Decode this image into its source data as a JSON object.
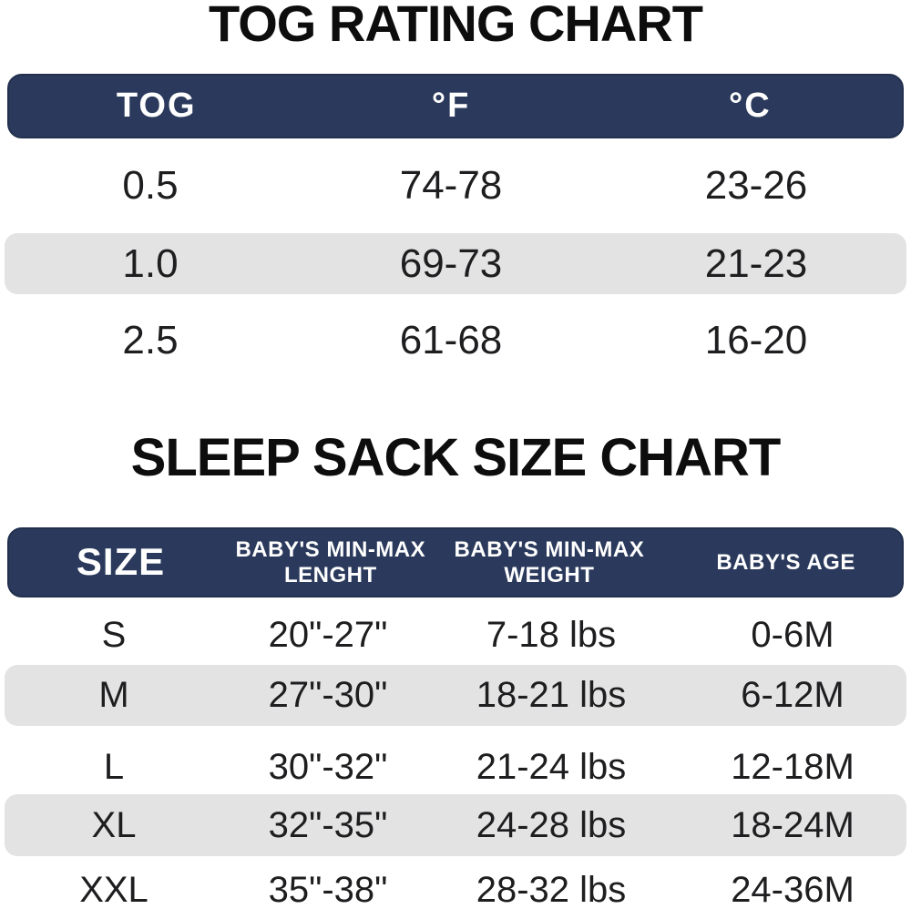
{
  "colors": {
    "header_bg": "#2b3a5c",
    "header_border": "#22304e",
    "row_shade": "#e3e3e3",
    "body_text": "#1e1e20",
    "header_text": "#ffffff",
    "title_text": "#0d0d0d"
  },
  "tog_chart": {
    "title": "TOG RATING CHART",
    "headers": {
      "tog": "TOG",
      "fahrenheit": "°F",
      "celsius": "°C"
    },
    "rows": [
      {
        "tog": "0.5",
        "fahrenheit": "74-78",
        "celsius": "23-26"
      },
      {
        "tog": "1.0",
        "fahrenheit": "69-73",
        "celsius": "21-23"
      },
      {
        "tog": "2.5",
        "fahrenheit": "61-68",
        "celsius": "16-20"
      }
    ]
  },
  "size_chart": {
    "title": "SLEEP SACK SIZE CHART",
    "headers": {
      "size": "SIZE",
      "length_line1": "BABY'S MIN-MAX",
      "length_line2": "LENGHT",
      "weight_line1": "BABY'S MIN-MAX",
      "weight_line2": "WEIGHT",
      "age": "BABY'S AGE"
    },
    "rows": [
      {
        "size": "S",
        "length": "20\"-27\"",
        "weight": "7-18 lbs",
        "age": "0-6M"
      },
      {
        "size": "M",
        "length": "27\"-30\"",
        "weight": "18-21 lbs",
        "age": "6-12M"
      },
      {
        "size": "L",
        "length": "30\"-32\"",
        "weight": "21-24 lbs",
        "age": "12-18M"
      },
      {
        "size": "XL",
        "length": "32\"-35\"",
        "weight": "24-28 lbs",
        "age": "18-24M"
      },
      {
        "size": "XXL",
        "length": "35\"-38\"",
        "weight": "28-32 lbs",
        "age": "24-36M"
      }
    ]
  },
  "chart_data": [
    {
      "type": "table",
      "title": "TOG RATING CHART",
      "columns": [
        "TOG",
        "°F",
        "°C"
      ],
      "rows": [
        [
          "0.5",
          "74-78",
          "23-26"
        ],
        [
          "1.0",
          "69-73",
          "21-23"
        ],
        [
          "2.5",
          "61-68",
          "16-20"
        ]
      ],
      "layout_hints": {
        "shaded_row_indices": [
          1
        ],
        "header_bg": "#2b3a5c",
        "shade_bg": "#e3e3e3"
      }
    },
    {
      "type": "table",
      "title": "SLEEP SACK SIZE CHART",
      "columns": [
        "SIZE",
        "BABY'S MIN-MAX LENGHT",
        "BABY'S MIN-MAX WEIGHT",
        "BABY'S AGE"
      ],
      "rows": [
        [
          "S",
          "20\"-27\"",
          "7-18 lbs",
          "0-6M"
        ],
        [
          "M",
          "27\"-30\"",
          "18-21 lbs",
          "6-12M"
        ],
        [
          "L",
          "30\"-32\"",
          "21-24 lbs",
          "12-18M"
        ],
        [
          "XL",
          "32\"-35\"",
          "24-28 lbs",
          "18-24M"
        ],
        [
          "XXL",
          "35\"-38\"",
          "28-32 lbs",
          "24-36M"
        ]
      ],
      "layout_hints": {
        "shaded_row_indices": [
          1,
          3
        ],
        "header_bg": "#2b3a5c",
        "shade_bg": "#e3e3e3"
      }
    }
  ]
}
